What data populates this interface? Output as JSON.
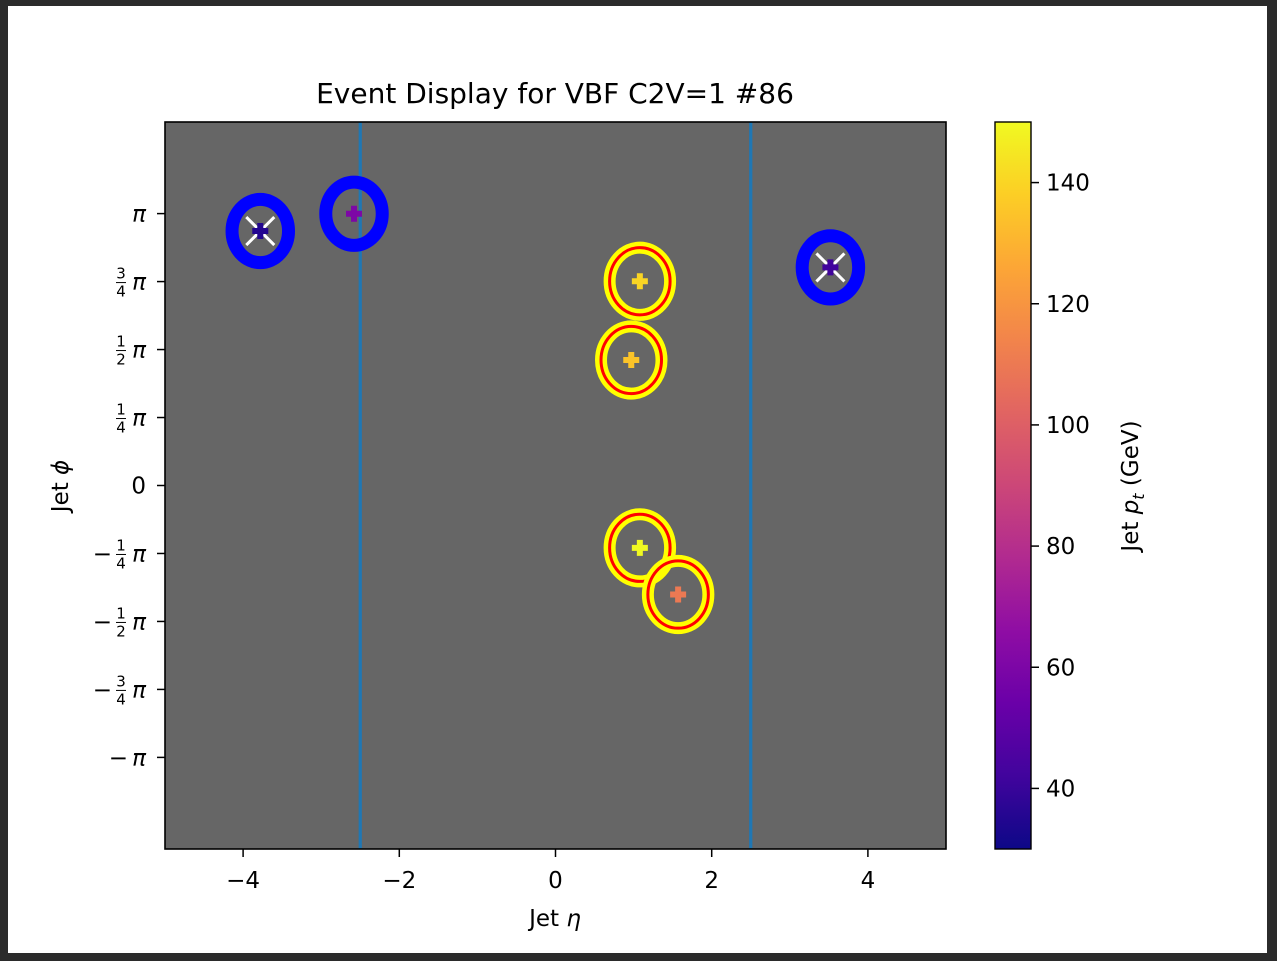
{
  "chart_data": {
    "type": "scatter",
    "title": "Event Display for VBF C2V=1 #86",
    "xlabel": "Jet η",
    "ylabel": "Jet ϕ",
    "xlim": [
      -5,
      5
    ],
    "ylim": [
      -4.2,
      4.2
    ],
    "background_color": "#666666",
    "xticks": [
      -4,
      -2,
      0,
      2,
      4
    ],
    "xtick_labels": [
      "−4",
      "−2",
      "0",
      "2",
      "4"
    ],
    "yticks": [
      3.14159,
      2.35619,
      1.5708,
      0.7854,
      0,
      -0.7854,
      -1.5708,
      -2.35619,
      -3.14159
    ],
    "ytick_labels": [
      {
        "sign": "",
        "num": "",
        "den": "",
        "sym": "π"
      },
      {
        "sign": "",
        "num": "3",
        "den": "4",
        "sym": "π"
      },
      {
        "sign": "",
        "num": "1",
        "den": "2",
        "sym": "π"
      },
      {
        "sign": "",
        "num": "1",
        "den": "4",
        "sym": "π"
      },
      {
        "sign": "",
        "num": "",
        "den": "",
        "sym": "0"
      },
      {
        "sign": "−",
        "num": "1",
        "den": "4",
        "sym": "π"
      },
      {
        "sign": "−",
        "num": "1",
        "den": "2",
        "sym": "π"
      },
      {
        "sign": "−",
        "num": "3",
        "den": "4",
        "sym": "π"
      },
      {
        "sign": "−",
        "num": "",
        "den": "",
        "sym": "π"
      }
    ],
    "vertical_lines": [
      {
        "x": -2.5,
        "color": "#1f77b4"
      },
      {
        "x": 2.5,
        "color": "#1f77b4"
      }
    ],
    "jets": [
      {
        "eta": -3.78,
        "phi": 2.94,
        "pt": 35,
        "ring": "#0000ff",
        "tagged": true
      },
      {
        "eta": -2.58,
        "phi": 3.14,
        "pt": 60,
        "ring": "#0000ff",
        "tagged": false
      },
      {
        "eta": 3.52,
        "phi": 2.52,
        "pt": 42,
        "ring": "#0000ff",
        "tagged": true
      },
      {
        "eta": 1.08,
        "phi": 2.36,
        "pt": 140,
        "ring": "#ffff00",
        "inner_ring": "#ff0000",
        "tagged": false
      },
      {
        "eta": 0.97,
        "phi": 1.45,
        "pt": 135,
        "ring": "#ffff00",
        "inner_ring": "#ff0000",
        "tagged": false
      },
      {
        "eta": 1.08,
        "phi": -0.72,
        "pt": 150,
        "ring": "#ffff00",
        "inner_ring": "#ff0000",
        "tagged": false
      },
      {
        "eta": 1.57,
        "phi": -1.26,
        "pt": 110,
        "ring": "#ffff00",
        "inner_ring": "#ff0000",
        "tagged": false
      }
    ],
    "colorbar": {
      "label_prefix": "Jet ",
      "label_var": "p",
      "label_sub": "t",
      "label_suffix": " (GeV)",
      "range": [
        30,
        150
      ],
      "ticks": [
        40,
        60,
        80,
        100,
        120,
        140
      ],
      "tick_labels": [
        "40",
        "60",
        "80",
        "100",
        "120",
        "140"
      ],
      "colormap": "plasma",
      "colormap_stops": [
        "#0d0887",
        "#41049d",
        "#6a00a8",
        "#8f0da4",
        "#b12a90",
        "#cc4778",
        "#e16462",
        "#f2844b",
        "#fca636",
        "#fcce25",
        "#f0f921"
      ]
    }
  }
}
